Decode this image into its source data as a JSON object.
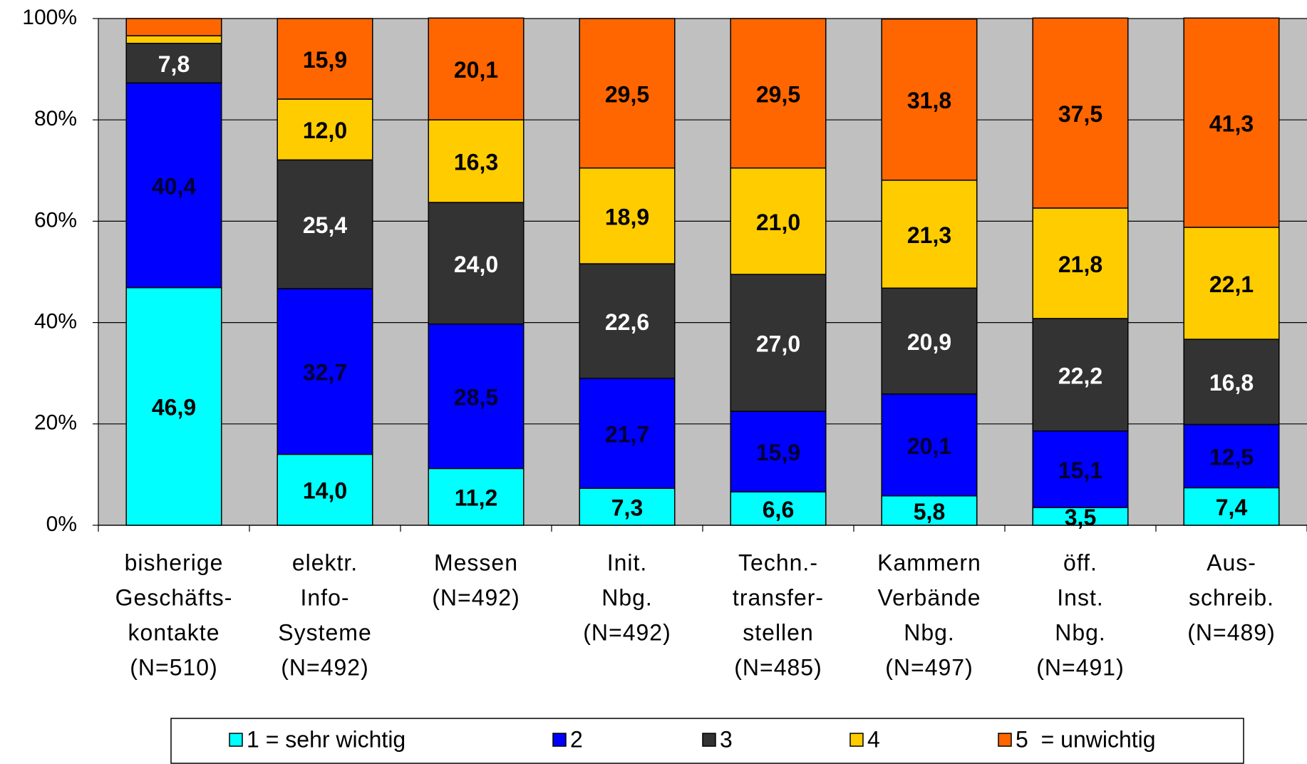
{
  "chart_data": {
    "type": "stacked_bar",
    "categories": [
      [
        "bisherige",
        "Geschäfts-",
        "kontakte",
        "(N=510)"
      ],
      [
        "elektr.",
        "Info-",
        "Systeme",
        "(N=492)"
      ],
      [
        "Messen",
        "(N=492)"
      ],
      [
        "Init.",
        "Nbg.",
        "(N=492)"
      ],
      [
        "Techn.-",
        "transfer-",
        "stellen",
        "(N=485)"
      ],
      [
        "Kammern",
        "Verbände",
        "Nbg.",
        "(N=497)"
      ],
      [
        "öff.",
        "Inst.",
        "Nbg.",
        "(N=491)"
      ],
      [
        "Aus-",
        "schreib.",
        "(N=489)"
      ]
    ],
    "series": [
      {
        "name": "1 = sehr wichtig",
        "color": "#00ffff",
        "label_color": "#000000",
        "values": [
          46.9,
          14.0,
          11.2,
          7.3,
          6.6,
          5.8,
          3.5,
          7.4
        ],
        "value_labels": [
          "46,9",
          "14,0",
          "11,2",
          "7,3",
          "6,6",
          "5,8",
          "3,5",
          "7,4"
        ]
      },
      {
        "name": "2",
        "color": "#0000ff",
        "label_color": "#000033",
        "values": [
          40.4,
          32.7,
          28.5,
          21.7,
          15.9,
          20.1,
          15.1,
          12.5
        ],
        "value_labels": [
          "40,4",
          "32,7",
          "28,5",
          "21,7",
          "15,9",
          "20,1",
          "15,1",
          "12,5"
        ]
      },
      {
        "name": "3",
        "color": "#333333",
        "label_color": "#ffffff",
        "values": [
          7.8,
          25.4,
          24.0,
          22.6,
          27.0,
          20.9,
          22.2,
          16.8
        ],
        "value_labels": [
          "7,8",
          "25,4",
          "24,0",
          "22,6",
          "27,0",
          "20,9",
          "22,2",
          "16,8"
        ]
      },
      {
        "name": "4",
        "color": "#ffcc00",
        "label_color": "#000000",
        "values": [
          1.5,
          12.0,
          16.3,
          18.9,
          21.0,
          21.3,
          21.8,
          22.1
        ],
        "value_labels": [
          null,
          "12,0",
          "16,3",
          "18,9",
          "21,0",
          "21,3",
          "21,8",
          "22,1"
        ]
      },
      {
        "name": "5  = unwichtig",
        "color": "#ff6600",
        "label_color": "#000000",
        "values": [
          3.4,
          15.9,
          20.1,
          29.5,
          29.5,
          31.8,
          37.5,
          41.3
        ],
        "value_labels": [
          null,
          "15,9",
          "20,1",
          "29,5",
          "29,5",
          "31,8",
          "37,5",
          "41,3"
        ]
      }
    ],
    "ylim": [
      0,
      100
    ],
    "yticks": [
      {
        "value": 0,
        "label": "0%"
      },
      {
        "value": 20,
        "label": "20%"
      },
      {
        "value": 40,
        "label": "40%"
      },
      {
        "value": 60,
        "label": "60%"
      },
      {
        "value": 80,
        "label": "80%"
      },
      {
        "value": 100,
        "label": "100%"
      }
    ],
    "grid": true,
    "plot_background": "#c0c0c0",
    "legend": "bottom"
  }
}
